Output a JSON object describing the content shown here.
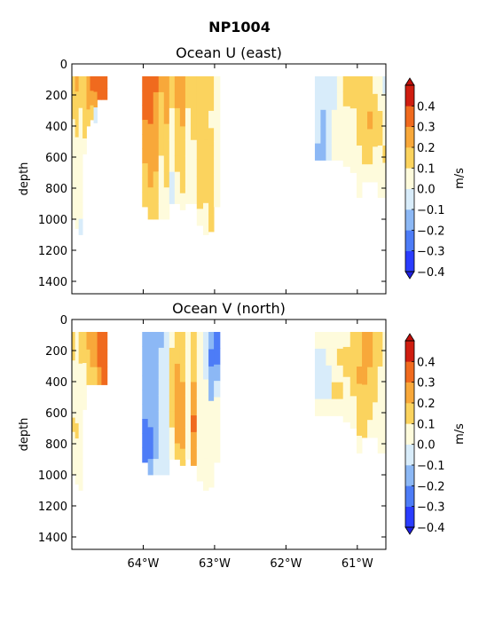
{
  "figure_title": "NP1004",
  "colorscale": {
    "levels": [
      -0.4,
      -0.3,
      -0.2,
      -0.1,
      0.0,
      0.1,
      0.2,
      0.3,
      0.4
    ],
    "tick_labels": [
      "−0.4",
      "−0.3",
      "−0.2",
      "−0.1",
      "0.0",
      "0.1",
      "0.2",
      "0.3",
      "0.4"
    ],
    "colors": [
      "#2a3cff",
      "#4d7cf7",
      "#8cb8f5",
      "#d8ecfa",
      "#fefbdc",
      "#fbd35e",
      "#f8a83a",
      "#f06a1e",
      "#cf1d10"
    ],
    "under_color": "#1f1fe0",
    "over_color": "#bf0f0a",
    "label": "m/s"
  },
  "chart_data": [
    {
      "type": "heatmap",
      "title": "Ocean U (east)",
      "ylabel": "depth",
      "xlabel": "",
      "y_ticks": [
        0,
        200,
        400,
        600,
        800,
        1000,
        1200,
        1400
      ],
      "x_ticks": [
        -64,
        -63,
        -62,
        -61
      ],
      "x_tick_labels": [],
      "xlim": [
        -65.0,
        -60.6
      ],
      "ylim": [
        1480,
        0
      ],
      "y_inverted": true,
      "colorbar_label": "m/s",
      "profile_depth_top": 80,
      "profiles": [
        {
          "lon": -64.98,
          "bottom": 1000,
          "values": [
            0.15,
            0.12,
            0.1,
            0.08,
            0.06,
            0.05,
            0.05,
            0.06,
            0.05,
            0.04
          ]
        },
        {
          "lon": -64.93,
          "bottom": 1060,
          "values": [
            0.2,
            0.15,
            0.12,
            0.1,
            0.08,
            0.07,
            0.08,
            0.07,
            0.06,
            0.05
          ]
        },
        {
          "lon": -64.88,
          "bottom": 1100,
          "values": [
            0.12,
            0.1,
            0.08,
            0.06,
            0.05,
            0.05,
            0.04,
            0.04,
            0.03,
            -0.02
          ]
        },
        {
          "lon": -64.82,
          "bottom": 580,
          "values": [
            0.18,
            0.16,
            0.12,
            0.1,
            0.08
          ]
        },
        {
          "lon": -64.77,
          "bottom": 400,
          "values": [
            0.28,
            0.22,
            0.15
          ]
        },
        {
          "lon": -64.72,
          "bottom": 360,
          "values": [
            0.3,
            0.25,
            0.12
          ]
        },
        {
          "lon": -64.67,
          "bottom": 380,
          "values": [
            0.32,
            0.2,
            -0.08
          ]
        },
        {
          "lon": -64.62,
          "bottom": 230,
          "values": [
            0.34,
            0.3
          ]
        },
        {
          "lon": -64.55,
          "bottom": 230,
          "values": [
            0.35,
            0.3
          ]
        },
        {
          "lon": -63.97,
          "bottom": 920,
          "values": [
            0.34,
            0.36,
            0.3,
            0.28,
            0.25,
            0.22,
            0.18,
            0.15,
            0.12
          ]
        },
        {
          "lon": -63.9,
          "bottom": 1000,
          "values": [
            0.36,
            0.32,
            0.3,
            0.27,
            0.25,
            0.22,
            0.2,
            0.15,
            0.12
          ]
        },
        {
          "lon": -63.82,
          "bottom": 1000,
          "values": [
            0.3,
            0.28,
            0.27,
            0.25,
            0.22,
            0.2,
            0.18,
            0.15,
            0.12
          ]
        },
        {
          "lon": -63.75,
          "bottom": 1000,
          "values": [
            0.2,
            0.18,
            0.15,
            0.12,
            0.1,
            0.08,
            0.06,
            0.05,
            0.04
          ]
        },
        {
          "lon": -63.67,
          "bottom": 1000,
          "values": [
            0.25,
            0.22,
            0.2,
            0.18,
            0.15,
            0.12,
            0.1,
            0.08,
            0.06
          ]
        },
        {
          "lon": -63.6,
          "bottom": 900,
          "values": [
            0.12,
            0.1,
            0.08,
            0.05,
            0.04,
            0.03,
            -0.02,
            -0.03
          ]
        },
        {
          "lon": -63.52,
          "bottom": 900,
          "values": [
            0.25,
            0.22,
            0.18,
            0.15,
            0.12,
            0.1,
            0.08,
            0.05
          ]
        },
        {
          "lon": -63.45,
          "bottom": 940,
          "values": [
            0.28,
            0.25,
            0.22,
            0.18,
            0.15,
            0.12,
            0.1,
            0.08
          ]
        },
        {
          "lon": -63.37,
          "bottom": 900,
          "values": [
            0.12,
            0.1,
            0.08,
            0.06,
            0.05,
            0.04,
            0.03,
            0.02
          ]
        },
        {
          "lon": -63.3,
          "bottom": 900,
          "values": [
            0.16,
            0.14,
            0.12,
            0.1,
            0.08,
            0.06,
            0.05,
            0.04
          ]
        },
        {
          "lon": -63.2,
          "bottom": 1040,
          "values": [
            0.18,
            0.16,
            0.15,
            0.14,
            0.13,
            0.12,
            0.12,
            0.1,
            0.09
          ]
        },
        {
          "lon": -63.12,
          "bottom": 1100,
          "values": [
            0.15,
            0.12,
            0.1,
            0.12,
            0.15,
            0.12,
            0.11,
            0.1,
            0.09,
            0.08
          ]
        },
        {
          "lon": -63.05,
          "bottom": 1080,
          "values": [
            0.12,
            0.1,
            0.08,
            0.12,
            0.15,
            0.16,
            0.14,
            0.12,
            0.1
          ]
        },
        {
          "lon": -62.97,
          "bottom": 920,
          "values": [
            0.08,
            0.06,
            0.05,
            0.04,
            0.03,
            0.02,
            0.02,
            0.01
          ]
        },
        {
          "lon": -61.55,
          "bottom": 620,
          "values": [
            -0.06,
            -0.07,
            -0.08,
            -0.1,
            -0.15
          ]
        },
        {
          "lon": -61.48,
          "bottom": 620,
          "values": [
            -0.06,
            -0.08,
            -0.12,
            -0.15,
            -0.12
          ]
        },
        {
          "lon": -61.4,
          "bottom": 620,
          "values": [
            -0.05,
            -0.06,
            -0.1,
            -0.08,
            -0.06
          ]
        },
        {
          "lon": -61.32,
          "bottom": 620,
          "values": [
            -0.08,
            -0.06,
            0.04,
            0.05,
            0.04
          ]
        },
        {
          "lon": -61.25,
          "bottom": 620,
          "values": [
            0.05,
            0.06,
            0.05,
            0.04,
            0.05
          ]
        },
        {
          "lon": -61.15,
          "bottom": 660,
          "values": [
            0.12,
            0.1,
            0.08,
            0.06,
            0.05,
            0.04
          ]
        },
        {
          "lon": -61.05,
          "bottom": 700,
          "values": [
            0.15,
            0.12,
            0.08,
            0.05,
            0.04,
            0.03
          ]
        },
        {
          "lon": -60.97,
          "bottom": 860,
          "values": [
            0.18,
            0.15,
            0.12,
            0.1,
            0.08,
            0.06,
            0.05
          ]
        },
        {
          "lon": -60.9,
          "bottom": 760,
          "values": [
            0.12,
            0.15,
            0.18,
            0.16,
            0.12,
            0.08
          ]
        },
        {
          "lon": -60.82,
          "bottom": 760,
          "values": [
            0.15,
            0.18,
            0.2,
            0.15,
            0.1,
            0.08
          ]
        },
        {
          "lon": -60.75,
          "bottom": 760,
          "values": [
            0.08,
            0.1,
            0.15,
            0.12,
            0.08,
            0.05
          ]
        },
        {
          "lon": -60.68,
          "bottom": 860,
          "values": [
            0.05,
            0.08,
            0.1,
            0.12,
            0.08,
            0.05,
            0.04
          ]
        },
        {
          "lon": -60.61,
          "bottom": 860,
          "values": [
            -0.05,
            0.05,
            0.06,
            0.08,
            0.1,
            0.06,
            0.05
          ]
        }
      ]
    },
    {
      "type": "heatmap",
      "title": "Ocean V (north)",
      "ylabel": "depth",
      "xlabel": "",
      "y_ticks": [
        0,
        200,
        400,
        600,
        800,
        1000,
        1200,
        1400
      ],
      "x_ticks": [
        -64,
        -63,
        -62,
        -61
      ],
      "x_tick_labels": [
        "64°W",
        "63°W",
        "62°W",
        "61°W"
      ],
      "xlim": [
        -65.0,
        -60.6
      ],
      "ylim": [
        1480,
        0
      ],
      "y_inverted": true,
      "colorbar_label": "m/s",
      "profile_depth_top": 80,
      "profiles": [
        {
          "lon": -64.98,
          "bottom": 1000,
          "values": [
            0.12,
            0.1,
            0.08,
            0.06,
            0.05,
            0.08,
            0.1,
            0.06,
            0.05,
            0.04
          ]
        },
        {
          "lon": -64.93,
          "bottom": 1060,
          "values": [
            0.08,
            0.06,
            0.05,
            0.04,
            0.03,
            0.05,
            0.12,
            0.08,
            0.05,
            0.03
          ]
        },
        {
          "lon": -64.88,
          "bottom": 1100,
          "values": [
            0.12,
            0.1,
            0.08,
            0.05,
            0.04,
            0.03,
            0.05,
            0.04,
            0.03,
            0.02
          ]
        },
        {
          "lon": -64.82,
          "bottom": 580,
          "values": [
            0.15,
            0.12,
            0.08,
            0.05,
            0.04
          ]
        },
        {
          "lon": -64.77,
          "bottom": 420,
          "values": [
            0.2,
            0.15,
            0.1
          ]
        },
        {
          "lon": -64.72,
          "bottom": 420,
          "values": [
            0.22,
            0.2,
            0.15
          ]
        },
        {
          "lon": -64.67,
          "bottom": 420,
          "values": [
            0.25,
            0.22,
            0.18
          ]
        },
        {
          "lon": -64.62,
          "bottom": 420,
          "values": [
            0.3,
            0.32,
            0.25
          ]
        },
        {
          "lon": -64.55,
          "bottom": 420,
          "values": [
            0.32,
            0.34,
            0.3
          ]
        },
        {
          "lon": -63.97,
          "bottom": 920,
          "values": [
            -0.12,
            -0.14,
            -0.15,
            -0.16,
            -0.18,
            -0.2,
            -0.25,
            -0.28,
            -0.3
          ]
        },
        {
          "lon": -63.9,
          "bottom": 1000,
          "values": [
            -0.14,
            -0.16,
            -0.15,
            -0.15,
            -0.16,
            -0.2,
            -0.22,
            -0.25,
            -0.2
          ]
        },
        {
          "lon": -63.82,
          "bottom": 1000,
          "values": [
            -0.12,
            -0.14,
            -0.15,
            -0.12,
            -0.12,
            -0.14,
            -0.15,
            -0.12,
            -0.1
          ]
        },
        {
          "lon": -63.75,
          "bottom": 1000,
          "values": [
            -0.12,
            -0.1,
            -0.08,
            -0.06,
            -0.05,
            -0.06,
            -0.04,
            -0.03,
            -0.02
          ]
        },
        {
          "lon": -63.67,
          "bottom": 1000,
          "values": [
            -0.08,
            -0.06,
            -0.05,
            -0.04,
            -0.03,
            -0.02,
            -0.03,
            -0.02,
            -0.01
          ]
        },
        {
          "lon": -63.6,
          "bottom": 900,
          "values": [
            0.08,
            0.1,
            0.12,
            0.15,
            0.12,
            0.1,
            0.08,
            0.05
          ]
        },
        {
          "lon": -63.52,
          "bottom": 900,
          "values": [
            0.15,
            0.18,
            0.2,
            0.22,
            0.25,
            0.22,
            0.2,
            0.15
          ]
        },
        {
          "lon": -63.45,
          "bottom": 940,
          "values": [
            0.12,
            0.15,
            0.18,
            0.2,
            0.22,
            0.25,
            0.2,
            0.15
          ]
        },
        {
          "lon": -63.37,
          "bottom": 900,
          "values": [
            0.05,
            0.04,
            0.03,
            0.02,
            0.01,
            0.02,
            0.03,
            0.02
          ]
        },
        {
          "lon": -63.3,
          "bottom": 940,
          "values": [
            0.1,
            0.12,
            0.15,
            0.2,
            0.25,
            0.3,
            0.28,
            0.25
          ]
        },
        {
          "lon": -63.2,
          "bottom": 1040,
          "values": [
            0.05,
            0.04,
            0.03,
            0.02,
            0.01,
            0.02,
            0.03,
            0.02,
            0.01
          ]
        },
        {
          "lon": -63.12,
          "bottom": 1100,
          "values": [
            -0.08,
            -0.06,
            -0.05,
            0.03,
            0.02,
            0.01,
            0.02,
            0.01,
            0.02,
            0.01
          ]
        },
        {
          "lon": -63.05,
          "bottom": 1080,
          "values": [
            -0.2,
            -0.25,
            -0.18,
            -0.12,
            0.02,
            0.01,
            0.02,
            0.01,
            0.01
          ]
        },
        {
          "lon": -62.97,
          "bottom": 920,
          "values": [
            -0.25,
            -0.3,
            -0.15,
            -0.1,
            0.02,
            0.01,
            0.02,
            0.01
          ]
        },
        {
          "lon": -61.55,
          "bottom": 620,
          "values": [
            0.05,
            -0.03,
            -0.05,
            -0.04,
            0.02
          ]
        },
        {
          "lon": -61.48,
          "bottom": 620,
          "values": [
            0.05,
            -0.05,
            -0.04,
            -0.03,
            0.04
          ]
        },
        {
          "lon": -61.4,
          "bottom": 620,
          "values": [
            0.06,
            0.05,
            -0.03,
            -0.04,
            0.05
          ]
        },
        {
          "lon": -61.32,
          "bottom": 620,
          "values": [
            0.05,
            0.05,
            0.04,
            0.12,
            0.05
          ]
        },
        {
          "lon": -61.25,
          "bottom": 620,
          "values": [
            0.06,
            0.12,
            0.05,
            0.15,
            0.04
          ]
        },
        {
          "lon": -61.15,
          "bottom": 660,
          "values": [
            0.08,
            0.1,
            0.12,
            0.08,
            0.05,
            0.04
          ]
        },
        {
          "lon": -61.05,
          "bottom": 700,
          "values": [
            0.12,
            0.15,
            0.12,
            0.1,
            0.05,
            0.04
          ]
        },
        {
          "lon": -60.97,
          "bottom": 860,
          "values": [
            0.15,
            0.18,
            0.2,
            0.18,
            0.15,
            0.1,
            0.05
          ]
        },
        {
          "lon": -60.9,
          "bottom": 760,
          "values": [
            0.2,
            0.22,
            0.2,
            0.18,
            0.15,
            0.1
          ]
        },
        {
          "lon": -60.82,
          "bottom": 760,
          "values": [
            0.25,
            0.22,
            0.18,
            0.15,
            0.12,
            0.08
          ]
        },
        {
          "lon": -60.75,
          "bottom": 760,
          "values": [
            0.18,
            0.15,
            0.12,
            0.1,
            0.08,
            0.05
          ]
        },
        {
          "lon": -60.68,
          "bottom": 860,
          "values": [
            0.12,
            0.1,
            0.08,
            0.06,
            0.05,
            0.04,
            0.03
          ]
        },
        {
          "lon": -60.61,
          "bottom": 860,
          "values": [
            0.08,
            0.06,
            0.05,
            0.04,
            0.03,
            0.02,
            0.02
          ]
        }
      ]
    }
  ]
}
